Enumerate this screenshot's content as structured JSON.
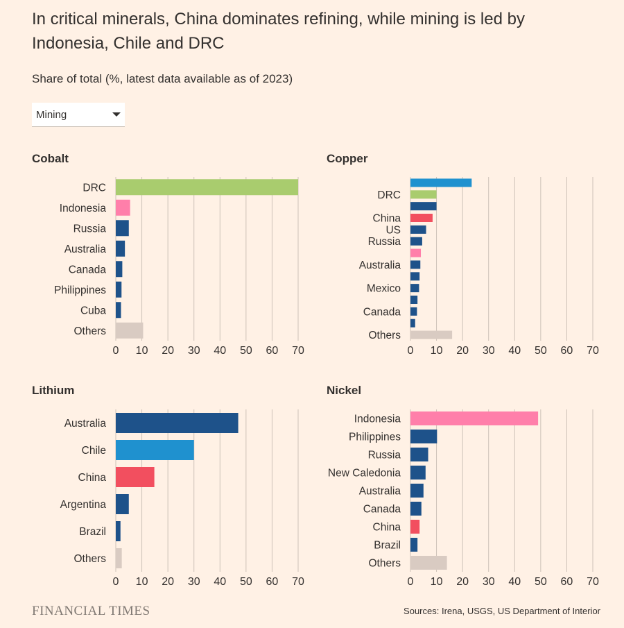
{
  "title": "In critical minerals, China dominates refining, while mining is led by Indonesia, Chile and DRC",
  "subtitle": "Share of total (%, latest data available as of 2023)",
  "dropdown": {
    "selected": "Mining"
  },
  "footer": {
    "logo": "FINANCIAL TIMES",
    "source": "Sources: Irena, USGS, US Department of Interior"
  },
  "colors": {
    "drc": "#a9cc6e",
    "indonesia": "#ff7faa",
    "china": "#f24f5f",
    "chile": "#1f91cf",
    "other_country": "#1e528a",
    "others": "#d9cbc2",
    "grid": "#ccc1b7",
    "background": "#fff1e5"
  },
  "chart_data": [
    {
      "type": "bar",
      "title": "Cobalt",
      "xlim": [
        0,
        70
      ],
      "ticks": [
        "0",
        "10",
        "20",
        "30",
        "40",
        "50",
        "60",
        "70"
      ],
      "bars": [
        {
          "label": "DRC",
          "value": 70,
          "color": "drc"
        },
        {
          "label": "Indonesia",
          "value": 5.5,
          "color": "indonesia"
        },
        {
          "label": "Russia",
          "value": 5,
          "color": "other_country"
        },
        {
          "label": "Australia",
          "value": 3.5,
          "color": "other_country"
        },
        {
          "label": "Canada",
          "value": 2.5,
          "color": "other_country"
        },
        {
          "label": "Philippines",
          "value": 2.2,
          "color": "other_country"
        },
        {
          "label": "Cuba",
          "value": 2,
          "color": "other_country"
        },
        {
          "label": "Others",
          "value": 10.5,
          "color": "others"
        }
      ]
    },
    {
      "type": "bar",
      "title": "Copper",
      "xlim": [
        0,
        70
      ],
      "ticks": [
        "0",
        "10",
        "20",
        "30",
        "40",
        "50",
        "60",
        "70"
      ],
      "bars": [
        {
          "label": "",
          "value": 23.5,
          "color": "chile"
        },
        {
          "label": "DRC",
          "value": 10,
          "color": "drc"
        },
        {
          "label": "",
          "value": 10,
          "color": "other_country"
        },
        {
          "label": "China",
          "value": 8.5,
          "color": "china"
        },
        {
          "label": "US",
          "value": 6,
          "color": "other_country"
        },
        {
          "label": "Russia",
          "value": 4.5,
          "color": "other_country"
        },
        {
          "label": "",
          "value": 4,
          "color": "indonesia"
        },
        {
          "label": "Australia",
          "value": 3.8,
          "color": "other_country"
        },
        {
          "label": "",
          "value": 3.5,
          "color": "other_country"
        },
        {
          "label": "Mexico",
          "value": 3.3,
          "color": "other_country"
        },
        {
          "label": "",
          "value": 2.7,
          "color": "other_country"
        },
        {
          "label": "Canada",
          "value": 2.5,
          "color": "other_country"
        },
        {
          "label": "",
          "value": 1.8,
          "color": "other_country"
        },
        {
          "label": "Others",
          "value": 16,
          "color": "others"
        }
      ]
    },
    {
      "type": "bar",
      "title": "Lithium",
      "xlim": [
        0,
        70
      ],
      "ticks": [
        "0",
        "10",
        "20",
        "30",
        "40",
        "50",
        "60",
        "70"
      ],
      "bars": [
        {
          "label": "Australia",
          "value": 47,
          "color": "other_country"
        },
        {
          "label": "Chile",
          "value": 30,
          "color": "chile"
        },
        {
          "label": "China",
          "value": 14.8,
          "color": "china"
        },
        {
          "label": "Argentina",
          "value": 5,
          "color": "other_country"
        },
        {
          "label": "Brazil",
          "value": 1.8,
          "color": "other_country"
        },
        {
          "label": "Others",
          "value": 2.3,
          "color": "others"
        }
      ]
    },
    {
      "type": "bar",
      "title": "Nickel",
      "xlim": [
        0,
        70
      ],
      "ticks": [
        "0",
        "10",
        "20",
        "30",
        "40",
        "50",
        "60",
        "70"
      ],
      "bars": [
        {
          "label": "Indonesia",
          "value": 49,
          "color": "indonesia"
        },
        {
          "label": "Philippines",
          "value": 10.2,
          "color": "other_country"
        },
        {
          "label": "Russia",
          "value": 6.8,
          "color": "other_country"
        },
        {
          "label": "New Caledonia",
          "value": 5.8,
          "color": "other_country"
        },
        {
          "label": "Australia",
          "value": 5,
          "color": "other_country"
        },
        {
          "label": "Canada",
          "value": 4.2,
          "color": "other_country"
        },
        {
          "label": "China",
          "value": 3.5,
          "color": "china"
        },
        {
          "label": "Brazil",
          "value": 2.7,
          "color": "other_country"
        },
        {
          "label": "Others",
          "value": 14,
          "color": "others"
        }
      ]
    }
  ]
}
